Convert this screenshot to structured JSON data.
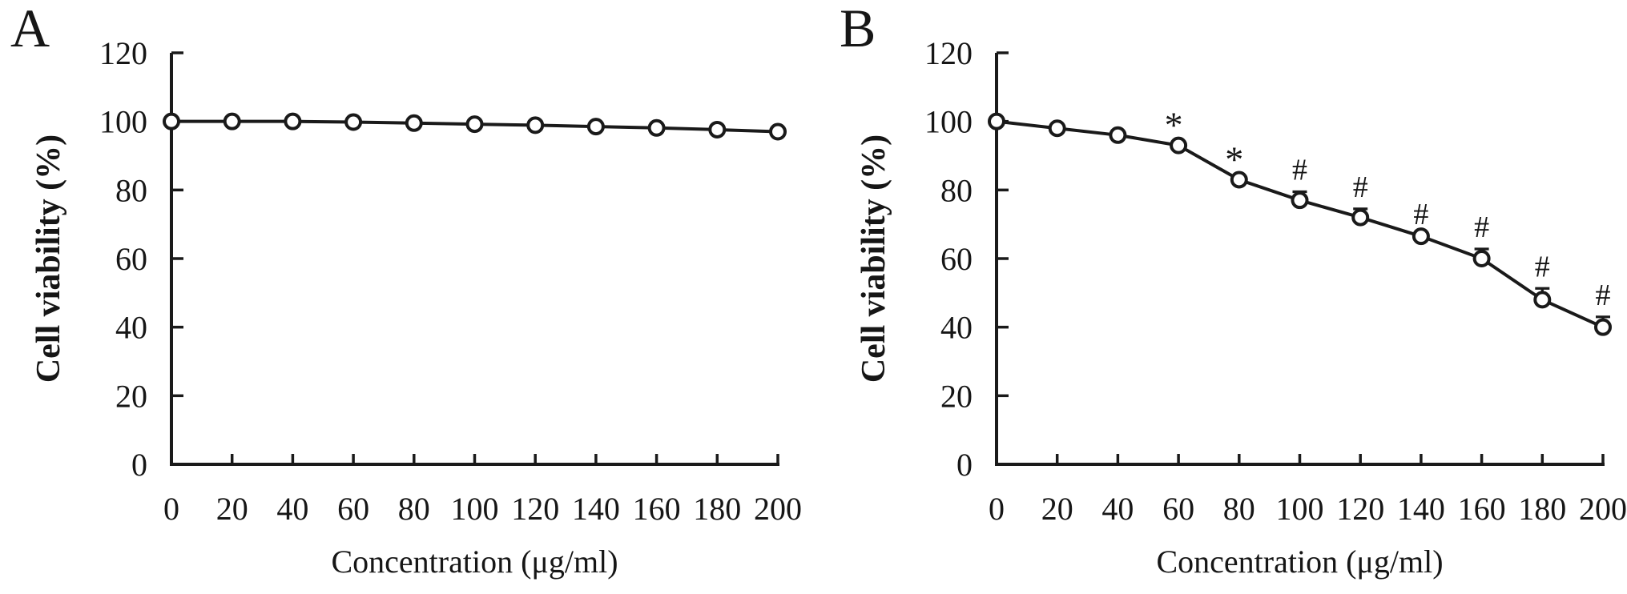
{
  "figure": {
    "background": "#ffffff",
    "ink_color": "#1a1a1a",
    "marker_fill": "#ffffff"
  },
  "chart_data": [
    {
      "type": "line",
      "panel_label": "A",
      "title": "",
      "xlabel": "Concentration (μg/ml)",
      "ylabel": "Cell viability (%)",
      "x": [
        0,
        20,
        40,
        60,
        80,
        100,
        120,
        140,
        160,
        180,
        200
      ],
      "y": [
        100,
        100,
        100,
        99.8,
        99.5,
        99.2,
        98.9,
        98.5,
        98.1,
        97.6,
        97
      ],
      "error_up": [
        0,
        0,
        0,
        0,
        0,
        0,
        0,
        0,
        0,
        0,
        0
      ],
      "annotations": [
        "",
        "",
        "",
        "",
        "",
        "",
        "",
        "",
        "",
        "",
        ""
      ],
      "xticks": [
        0,
        20,
        40,
        60,
        80,
        100,
        120,
        140,
        160,
        180,
        200
      ],
      "yticks": [
        0,
        20,
        40,
        60,
        80,
        100,
        120
      ],
      "xlim": [
        0,
        200
      ],
      "ylim": [
        0,
        120
      ],
      "grid": "off",
      "legend": "none",
      "marker": "open-circle",
      "line_color": "#1a1a1a"
    },
    {
      "type": "line",
      "panel_label": "B",
      "title": "",
      "xlabel": "Concentration (μg/ml)",
      "ylabel": "Cell viability (%)",
      "x": [
        0,
        20,
        40,
        60,
        80,
        100,
        120,
        140,
        160,
        180,
        200
      ],
      "y": [
        100,
        98,
        96,
        93,
        83,
        77,
        72,
        66.5,
        60,
        48,
        40
      ],
      "error_up": [
        0,
        0,
        0,
        0,
        0,
        2.5,
        2.5,
        0,
        2.8,
        3.3,
        3
      ],
      "annotations": [
        "",
        "",
        "",
        "*",
        "*",
        "#",
        "#",
        "#",
        "#",
        "#",
        "#"
      ],
      "xticks": [
        0,
        20,
        40,
        60,
        80,
        100,
        120,
        140,
        160,
        180,
        200
      ],
      "yticks": [
        0,
        20,
        40,
        60,
        80,
        100,
        120
      ],
      "xlim": [
        0,
        200
      ],
      "ylim": [
        0,
        120
      ],
      "grid": "off",
      "legend": "none",
      "marker": "open-circle",
      "line_color": "#1a1a1a"
    }
  ]
}
